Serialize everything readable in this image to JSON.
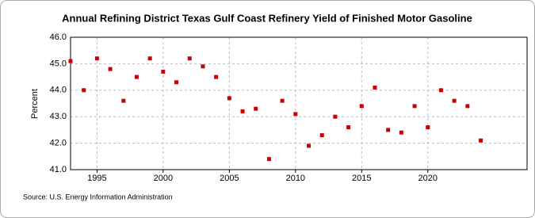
{
  "chart_data": {
    "type": "scatter",
    "title": "Annual Refining District Texas Gulf Coast Refinery Yield of Finished Motor Gasoline",
    "y_label": "Percent",
    "source": "Source: U.S. Energy Information Administration",
    "x": [
      1993,
      1994,
      1995,
      1996,
      1997,
      1998,
      1999,
      2000,
      2001,
      2002,
      2003,
      2004,
      2005,
      2006,
      2007,
      2008,
      2009,
      2010,
      2011,
      2012,
      2013,
      2014,
      2015,
      2016,
      2017,
      2018,
      2019,
      2020,
      2021,
      2022,
      2023,
      2024
    ],
    "series": [
      {
        "name": "Texas Gulf Coast",
        "color": "#cc0000",
        "values": [
          45.1,
          44.0,
          45.2,
          44.8,
          43.6,
          44.5,
          45.2,
          44.7,
          44.3,
          45.2,
          44.9,
          44.5,
          43.7,
          43.2,
          43.3,
          41.4,
          43.6,
          43.1,
          41.9,
          42.3,
          43.0,
          42.6,
          43.4,
          44.1,
          42.5,
          42.4,
          43.4,
          42.6,
          44.0,
          43.6,
          43.4,
          42.1
        ]
      }
    ],
    "xlim": [
      1993,
      2027.5
    ],
    "xticks": [
      1995,
      2000,
      2005,
      2010,
      2015,
      2020
    ],
    "ylim": [
      41,
      46
    ],
    "yticks": [
      {
        "value": 41,
        "label": "41.0"
      },
      {
        "value": 42,
        "label": "42.0"
      },
      {
        "value": 43,
        "label": "43.0"
      },
      {
        "value": 44,
        "label": "44.0"
      },
      {
        "value": 45,
        "label": "45.0"
      },
      {
        "value": 46,
        "label": "46.0"
      }
    ],
    "grid": true
  }
}
